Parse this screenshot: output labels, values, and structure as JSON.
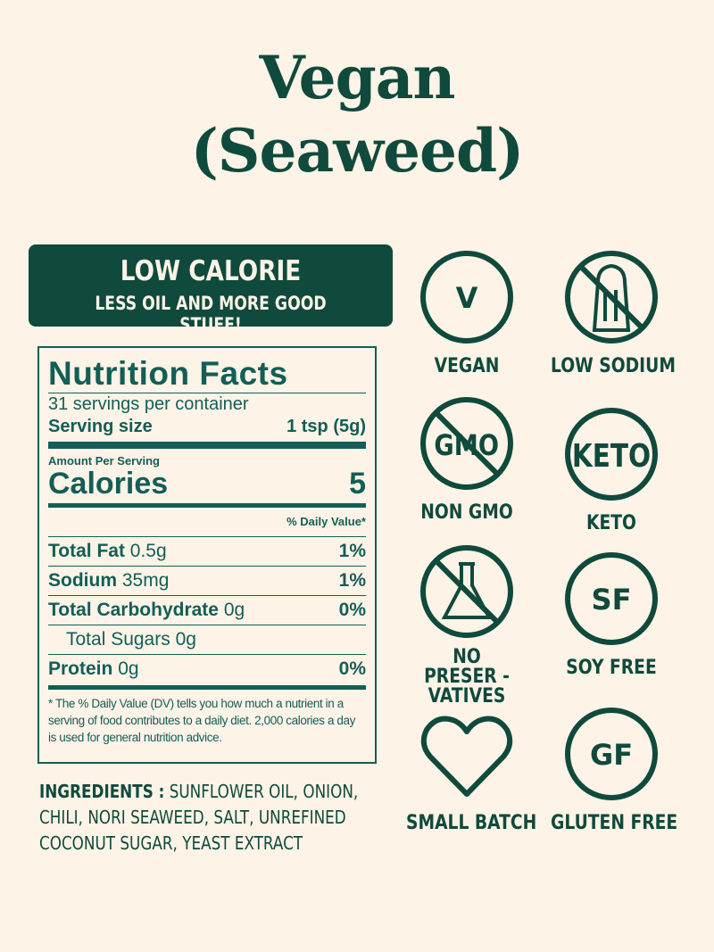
{
  "title": {
    "line1": "Vegan",
    "line2": "(Seaweed)"
  },
  "banner": {
    "heading": "LOW CALORIE",
    "subheading": "LESS OIL AND MORE GOOD STUFF!"
  },
  "nutrition": {
    "heading": "Nutrition Facts",
    "servings": "31 servings per container",
    "serving_size_label": "Serving size",
    "serving_size_value": "1 tsp (5g)",
    "amount_per_serving": "Amount Per Serving",
    "calories_label": "Calories",
    "calories_value": "5",
    "dv_header": "% Daily Value*",
    "rows": [
      {
        "name": "Total Fat",
        "amount": "0.5g",
        "dv": "1%"
      },
      {
        "name": "Sodium",
        "amount": "35mg",
        "dv": "1%"
      },
      {
        "name": "Total Carbohydrate",
        "amount": "0g",
        "dv": "0%"
      },
      {
        "name": "",
        "amount": "Total Sugars 0g",
        "dv": ""
      },
      {
        "name": "Protein",
        "amount": "0g",
        "dv": "0%"
      }
    ],
    "footnote": "* The % Daily Value (DV) tells you how much a nutrient in a serving of food contributes to a daily diet. 2,000 calories a day is used for general nutrition advice."
  },
  "ingredients": {
    "label": "INGREDIENTS :",
    "text": "SUNFLOWER OIL, ONION, CHILI, NORI SEAWEED, SALT, UNREFINED COCONUT SUGAR, YEAST EXTRACT"
  },
  "badges": [
    {
      "icon": "vegan-v-icon",
      "glyph": "V",
      "label": "VEGAN"
    },
    {
      "icon": "no-salt-shaker-icon",
      "glyph": "",
      "label": "LOW SODIUM"
    },
    {
      "icon": "no-gmo-icon",
      "glyph": "GMO",
      "label": "NON GMO"
    },
    {
      "icon": "keto-icon",
      "glyph": "KETO",
      "label": "KETO"
    },
    {
      "icon": "no-preservatives-flask-icon",
      "glyph": "",
      "label": "NO PRESER -VATIVES"
    },
    {
      "icon": "soy-free-icon",
      "glyph": "SF",
      "label": "SOY FREE"
    },
    {
      "icon": "heart-icon",
      "glyph": "",
      "label": "SMALL BATCH"
    },
    {
      "icon": "gluten-free-icon",
      "glyph": "GF",
      "label": "GLUTEN FREE"
    }
  ],
  "colors": {
    "background": "#fdf3e7",
    "brand_green": "#0f4a3c",
    "label_teal": "#135e57"
  }
}
